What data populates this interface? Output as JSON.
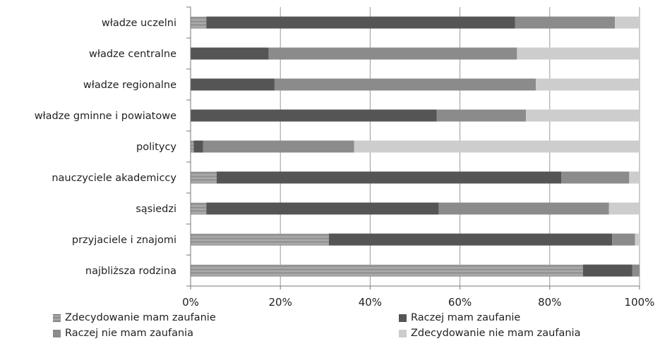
{
  "chart_data": {
    "type": "bar",
    "orientation": "horizontal",
    "stacked": "percent",
    "categories": [
      "władze uczelni",
      "władze centralne",
      "władze regionalne",
      "władze gminne i powiatowe",
      "politycy",
      "nauczyciele akademiccy",
      "sąsiedzi",
      "przyjaciele i znajomi",
      "najbliższa rodzina"
    ],
    "series": [
      {
        "name": "Zdecydowanie mam zaufanie",
        "values": [
          3.5,
          0,
          0,
          0,
          0.7,
          5.8,
          3.5,
          30.8,
          87.4
        ],
        "color": "#bdbdbd",
        "pattern": "horizontal-stripes"
      },
      {
        "name": "Raczej mam zaufanie",
        "values": [
          68.8,
          17.4,
          18.7,
          54.8,
          2.1,
          76.8,
          51.8,
          63.1,
          11.0
        ],
        "color": "#555555"
      },
      {
        "name": "Raczej nie mam zaufania",
        "values": [
          22.2,
          55.3,
          58.2,
          19.9,
          33.6,
          15.1,
          37.9,
          5.1,
          1.6
        ],
        "color": "#8b8b8b"
      },
      {
        "name": "Zdecydowanie nie mam zaufania",
        "values": [
          5.5,
          27.3,
          23.1,
          25.3,
          63.6,
          2.3,
          6.8,
          1.0,
          0
        ],
        "color": "#cdcdcd"
      }
    ],
    "xticks": [
      "0%",
      "20%",
      "40%",
      "60%",
      "80%",
      "100%"
    ],
    "xlim": [
      0,
      100
    ],
    "grid": "vertical",
    "legend": "bottom",
    "title": "",
    "xlabel": "",
    "ylabel": ""
  }
}
